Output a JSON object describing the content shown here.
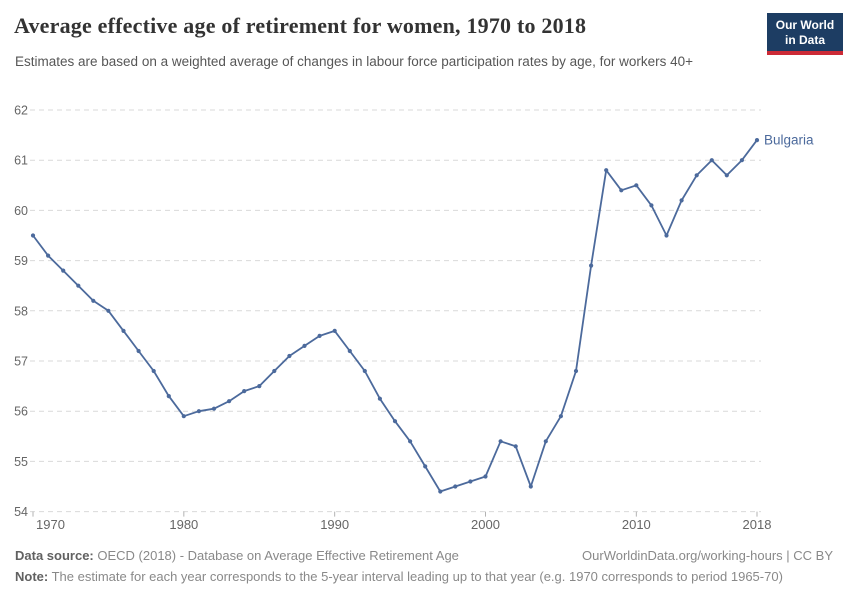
{
  "header": {
    "title": "Average effective age of retirement for women, 1970 to 2018",
    "subtitle": "Estimates are based on a weighted average of changes in labour force participation rates by age, for workers 40+",
    "logo": {
      "line1": "Our World",
      "line2": "in Data"
    }
  },
  "chart_data": {
    "type": "line",
    "title": "Average effective age of retirement for women, 1970 to 2018",
    "xlabel": "",
    "ylabel": "",
    "xlim": [
      1970,
      2018
    ],
    "ylim": [
      54,
      62
    ],
    "yticks": [
      54,
      55,
      56,
      57,
      58,
      59,
      60,
      61,
      62
    ],
    "xticks": [
      1970,
      1980,
      1990,
      2000,
      2010,
      2018
    ],
    "grid": true,
    "legend_position": "end-of-line-label",
    "series": [
      {
        "name": "Bulgaria",
        "color": "#4c6a9c",
        "x": [
          1970,
          1971,
          1972,
          1973,
          1974,
          1975,
          1976,
          1977,
          1978,
          1979,
          1980,
          1981,
          1982,
          1983,
          1984,
          1985,
          1986,
          1987,
          1988,
          1989,
          1990,
          1991,
          1992,
          1993,
          1994,
          1995,
          1996,
          1997,
          1998,
          1999,
          2000,
          2001,
          2002,
          2003,
          2004,
          2005,
          2006,
          2007,
          2008,
          2009,
          2010,
          2011,
          2012,
          2013,
          2014,
          2015,
          2016,
          2017,
          2018
        ],
        "values": [
          59.5,
          59.1,
          58.8,
          58.5,
          58.2,
          58.0,
          57.6,
          57.2,
          56.8,
          56.3,
          55.9,
          56.0,
          56.05,
          56.2,
          56.4,
          56.5,
          56.8,
          57.1,
          57.3,
          57.5,
          57.6,
          57.2,
          56.8,
          56.25,
          55.8,
          55.4,
          54.9,
          54.4,
          54.5,
          54.6,
          54.7,
          55.4,
          55.3,
          54.5,
          55.4,
          55.9,
          56.8,
          58.9,
          60.8,
          60.4,
          60.5,
          60.1,
          59.5,
          60.2,
          60.7,
          61.0,
          60.7,
          61.0,
          61.4
        ]
      }
    ]
  },
  "footer": {
    "datasource_label": "Data source:",
    "datasource_text": " OECD (2018) - Database on Average Effective Retirement Age",
    "link_text": "OurWorldinData.org/working-hours | CC BY",
    "note_label": "Note:",
    "note_text": " The estimate for each year corresponds to the 5-year interval leading up to that year (e.g. 1970 corresponds to period 1965-70)"
  },
  "colors": {
    "line": "#4c6a9c",
    "grid": "#d9d9d9",
    "tick": "#b3b3b3",
    "axis_text": "#666666"
  }
}
